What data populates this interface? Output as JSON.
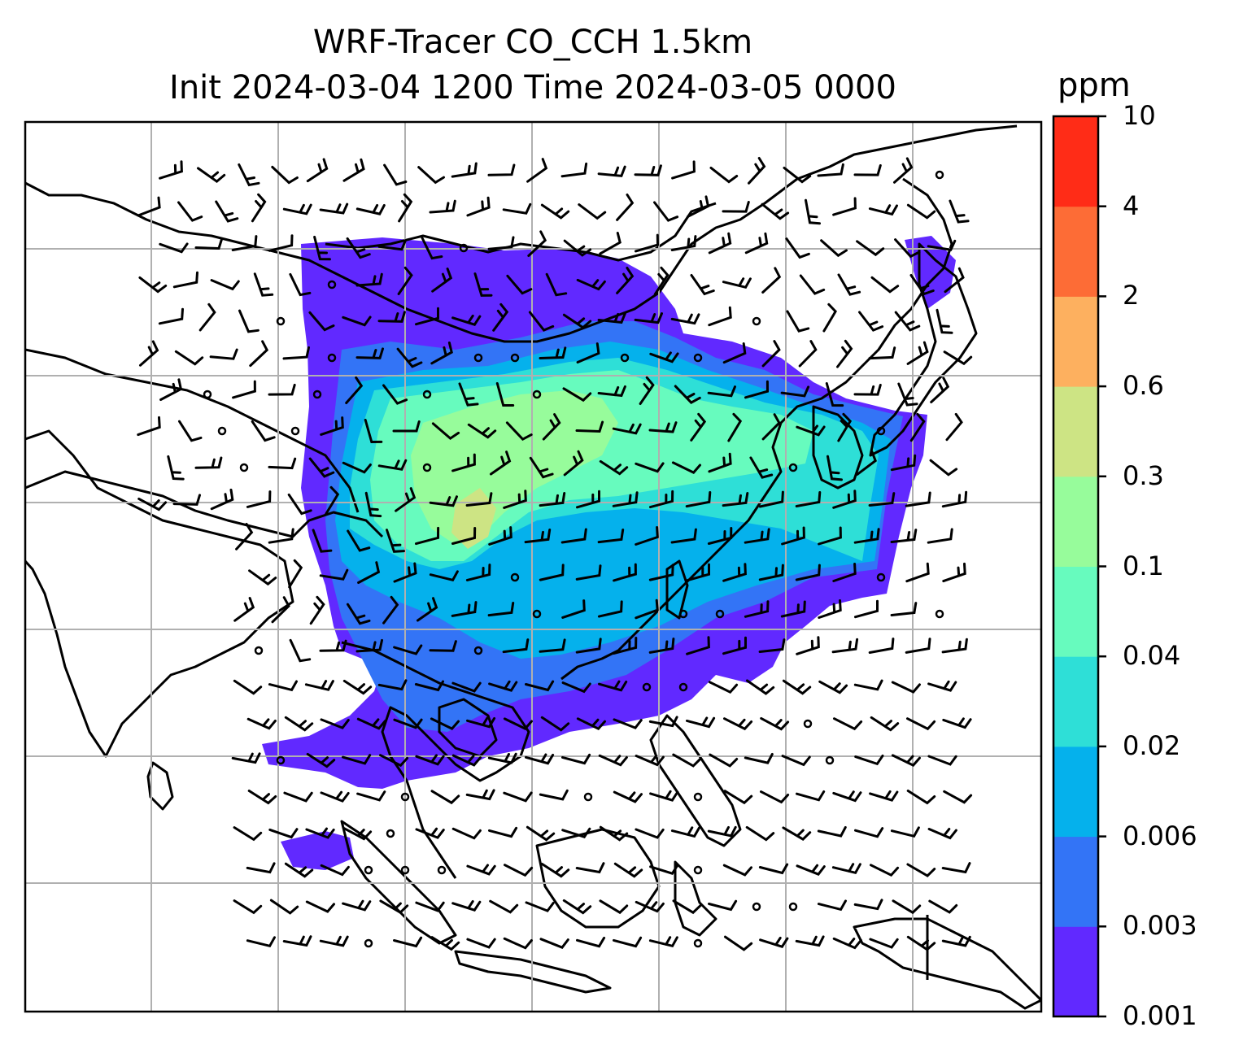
{
  "title": {
    "line1": "WRF-Tracer CO_CCH 1.5km",
    "line2": "Init 2024-03-04 1200 Time 2024-03-05 0000"
  },
  "colorbar": {
    "unit": "ppm",
    "levels": [
      "0.001",
      "0.003",
      "0.006",
      "0.02",
      "0.04",
      "0.1",
      "0.3",
      "0.6",
      "2",
      "4",
      "10"
    ],
    "colors": [
      "#6129ff",
      "#3374f6",
      "#05b1ec",
      "#2edfd7",
      "#67fbbe",
      "#97fc9b",
      "#cde484",
      "#fdb05f",
      "#fd6c36",
      "#ff2c17"
    ]
  },
  "map": {
    "gridlines": true,
    "coastline_color": "#000000",
    "grid_color": "#b0b0b0"
  }
}
